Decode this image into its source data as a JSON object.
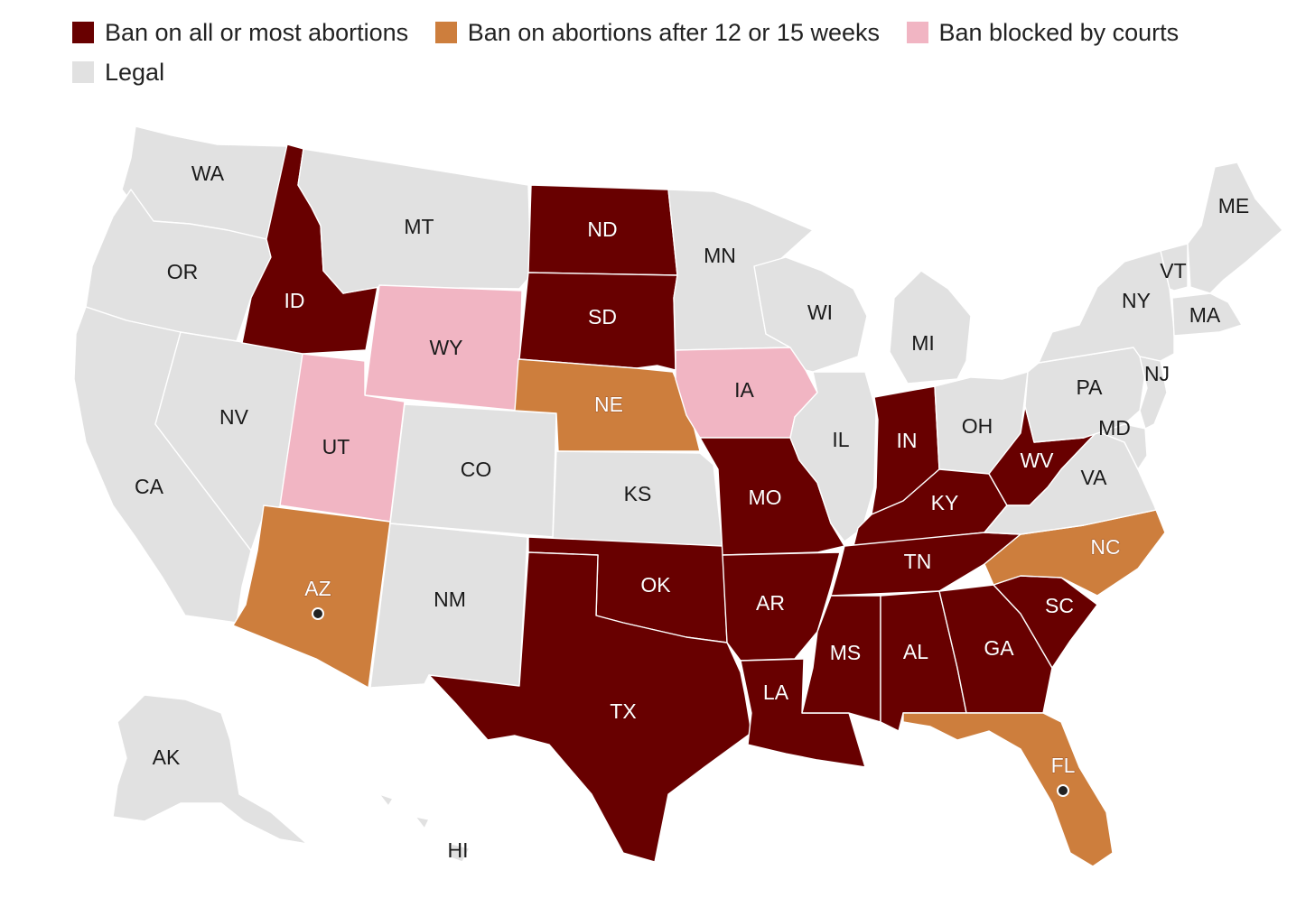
{
  "legend": {
    "items": [
      {
        "key": "ban",
        "label": "Ban on all or most abortions",
        "color": "#680000"
      },
      {
        "key": "weeks",
        "label": "Ban on abortions after 12 or 15 weeks",
        "color": "#cd7e3d"
      },
      {
        "key": "blocked",
        "label": "Ban blocked by courts",
        "color": "#f1b5c3"
      },
      {
        "key": "legal",
        "label": "Legal",
        "color": "#e1e1e1"
      }
    ]
  },
  "map": {
    "states": [
      {
        "code": "WA",
        "status": "legal"
      },
      {
        "code": "OR",
        "status": "legal"
      },
      {
        "code": "CA",
        "status": "legal"
      },
      {
        "code": "NV",
        "status": "legal"
      },
      {
        "code": "ID",
        "status": "ban"
      },
      {
        "code": "MT",
        "status": "legal"
      },
      {
        "code": "WY",
        "status": "blocked"
      },
      {
        "code": "UT",
        "status": "blocked"
      },
      {
        "code": "AZ",
        "status": "weeks",
        "marker": true
      },
      {
        "code": "CO",
        "status": "legal"
      },
      {
        "code": "NM",
        "status": "legal"
      },
      {
        "code": "ND",
        "status": "ban"
      },
      {
        "code": "SD",
        "status": "ban"
      },
      {
        "code": "NE",
        "status": "weeks"
      },
      {
        "code": "KS",
        "status": "legal"
      },
      {
        "code": "OK",
        "status": "ban"
      },
      {
        "code": "TX",
        "status": "ban"
      },
      {
        "code": "MN",
        "status": "legal"
      },
      {
        "code": "IA",
        "status": "blocked"
      },
      {
        "code": "MO",
        "status": "ban"
      },
      {
        "code": "AR",
        "status": "ban"
      },
      {
        "code": "LA",
        "status": "ban"
      },
      {
        "code": "WI",
        "status": "legal"
      },
      {
        "code": "IL",
        "status": "legal"
      },
      {
        "code": "MI",
        "status": "legal"
      },
      {
        "code": "IN",
        "status": "ban"
      },
      {
        "code": "OH",
        "status": "legal"
      },
      {
        "code": "KY",
        "status": "ban"
      },
      {
        "code": "TN",
        "status": "ban"
      },
      {
        "code": "MS",
        "status": "ban"
      },
      {
        "code": "AL",
        "status": "ban"
      },
      {
        "code": "GA",
        "status": "ban"
      },
      {
        "code": "FL",
        "status": "weeks",
        "marker": true
      },
      {
        "code": "SC",
        "status": "ban"
      },
      {
        "code": "NC",
        "status": "weeks"
      },
      {
        "code": "WV",
        "status": "ban"
      },
      {
        "code": "VA",
        "status": "legal"
      },
      {
        "code": "MD",
        "status": "legal"
      },
      {
        "code": "PA",
        "status": "legal"
      },
      {
        "code": "NJ",
        "status": "legal"
      },
      {
        "code": "NY",
        "status": "legal"
      },
      {
        "code": "VT",
        "status": "legal"
      },
      {
        "code": "MA",
        "status": "legal"
      },
      {
        "code": "ME",
        "status": "legal"
      },
      {
        "code": "AK",
        "status": "legal"
      },
      {
        "code": "HI",
        "status": "legal"
      }
    ]
  }
}
